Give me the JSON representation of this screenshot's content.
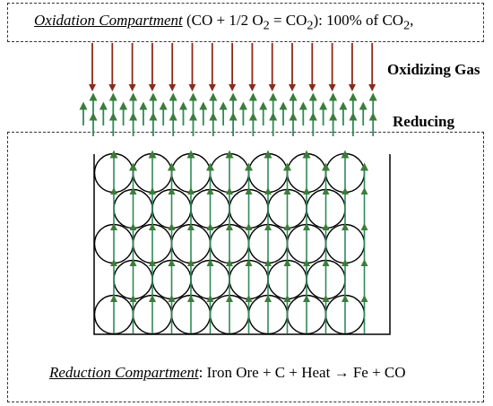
{
  "oxidation": {
    "name": "Oxidation Compartment",
    "equation_pre": " (CO + 1/2 O",
    "sub1": "2",
    "equation_mid": " = CO",
    "sub2": "2",
    "equation_post": "): 100% of CO",
    "sub3": "2",
    "equation_end": ","
  },
  "labels": {
    "oxidizing": "Oxidizing Gas",
    "reducing": "Reducing"
  },
  "reduction": {
    "name": "Reduction Compartment",
    "equation_pre": ": Iron Ore + C + Heat ",
    "arrow": "→",
    "equation_post": " Fe + CO"
  },
  "colors": {
    "oxidizing_arrow": "#8b2a1a",
    "reducing_arrow": "#2e8b57",
    "arrow_head": "#3b7d3b"
  }
}
